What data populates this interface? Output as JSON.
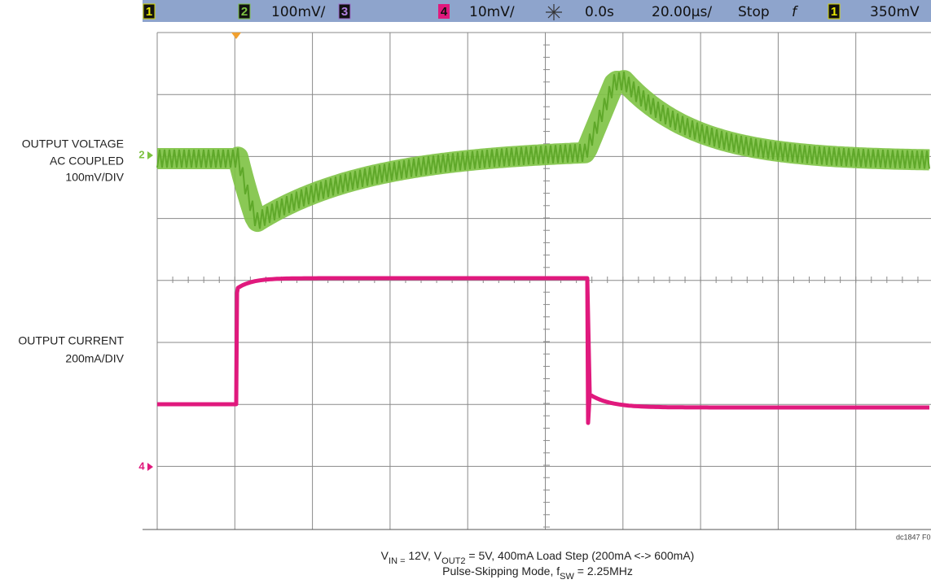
{
  "header": {
    "ch1": "1",
    "ch2": "2",
    "ch2_scale": "100mV/",
    "ch3": "3",
    "ch4": "4",
    "ch4_scale": "10mV/",
    "time_offset": "0.0s",
    "time_scale": "20.00µs/",
    "run_state": "Stop",
    "trigger_edge": "f",
    "trigger_ch": "1",
    "trigger_level": "350mV"
  },
  "labels": {
    "voltage": [
      "OUTPUT VOLTAGE",
      "AC COUPLED",
      "100mV/DIV"
    ],
    "current": [
      "OUTPUT CURRENT",
      "200mA/DIV"
    ],
    "marker_ch2": "2",
    "marker_ch4": "4",
    "figure_id": "dc1847 F0"
  },
  "caption": {
    "line1": [
      {
        "text": "V"
      },
      {
        "text": "IN =",
        "sub": true
      },
      {
        "text": " 12V, V"
      },
      {
        "text": "OUT2",
        "sub": true
      },
      {
        "text": " = 5V, 400mA Load Step (200mA <-> 600mA)"
      }
    ],
    "line2": [
      {
        "text": "Pulse-Skipping Mode, f"
      },
      {
        "text": "SW",
        "sub": true
      },
      {
        "text": " = 2.25MHz"
      }
    ]
  }
}
